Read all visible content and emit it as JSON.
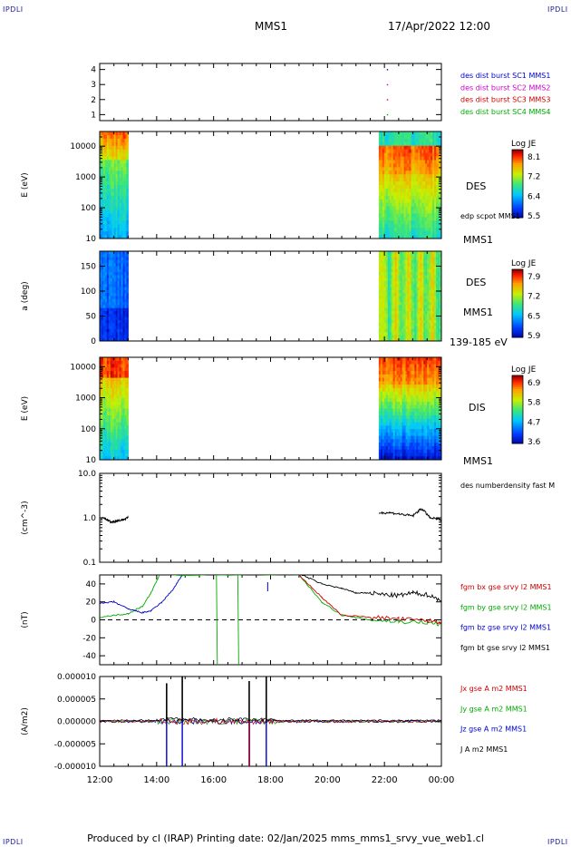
{
  "corner_labels": {
    "top_left": "IPDLI",
    "top_right": "IPDLI",
    "bottom_left": "IPDLI",
    "bottom_right": "IPDLI"
  },
  "header": {
    "mission": "MMS1",
    "datetime": "17/Apr/2022 12:00"
  },
  "footer": {
    "text": "Produced by cl (IRAP)   Printing date: 02/Jan/2025   mms_mms1_srvy_vue_web1.cl"
  },
  "time_axis": {
    "ticks": [
      "12:00",
      "14:00",
      "16:00",
      "18:00",
      "20:00",
      "22:00",
      "00:00"
    ]
  },
  "chart_data": [
    {
      "type": "scatter",
      "id": "burst",
      "yticks": [
        "1",
        "2",
        "3",
        "4"
      ],
      "ylim": [
        0.6,
        4.4
      ],
      "legend": [
        {
          "label": "des dist burst SC1 MMS1",
          "color": "#0000cc"
        },
        {
          "label": "des dist burst SC2 MMS2",
          "color": "#cc00cc"
        },
        {
          "label": "des dist burst SC3 MMS3",
          "color": "#cc0000"
        },
        {
          "label": "des dist burst SC4 MMS4",
          "color": "#00aa00"
        }
      ],
      "points": [
        {
          "t": 22.1,
          "y": 1.0,
          "color": "#00aa00"
        },
        {
          "t": 22.1,
          "y": 2.0,
          "color": "#cc0000"
        },
        {
          "t": 22.1,
          "y": 3.0,
          "color": "#cc00cc"
        },
        {
          "t": 22.1,
          "y": 4.0,
          "color": "#0000cc"
        }
      ]
    },
    {
      "type": "heatmap",
      "id": "des-energy",
      "ylabel": "E (eV)",
      "yscale": "log",
      "yticks": [
        "10",
        "100",
        "1000",
        "10000"
      ],
      "right_labels": [
        "DES",
        "edp scpot MMS1",
        "MMS1"
      ],
      "colorbar": {
        "title": "Log JE",
        "ticks": [
          "8.1",
          "7.2",
          "6.4",
          "5.5"
        ]
      },
      "segments": [
        {
          "t_start": 12.0,
          "t_end": 13.0
        },
        {
          "t_start": 21.8,
          "t_end": 24.0
        }
      ]
    },
    {
      "type": "heatmap",
      "id": "des-pitch",
      "ylabel": "a (deg)",
      "yticks": [
        "0",
        "50",
        "100",
        "150"
      ],
      "ylim": [
        0,
        180
      ],
      "right_labels": [
        "DES",
        "MMS1",
        "139-185 eV"
      ],
      "colorbar": {
        "title": "Log JE",
        "ticks": [
          "7.9",
          "7.2",
          "6.5",
          "5.9"
        ]
      },
      "segments": [
        {
          "t_start": 12.0,
          "t_end": 13.0
        },
        {
          "t_start": 21.8,
          "t_end": 24.0
        }
      ]
    },
    {
      "type": "heatmap",
      "id": "dis-energy",
      "ylabel": "E (eV)",
      "yscale": "log",
      "yticks": [
        "10",
        "100",
        "1000",
        "10000"
      ],
      "right_labels": [
        "DIS",
        "MMS1"
      ],
      "colorbar": {
        "title": "Log JE",
        "ticks": [
          "6.9",
          "5.8",
          "4.7",
          "3.6"
        ]
      },
      "segments": [
        {
          "t_start": 12.0,
          "t_end": 13.0
        },
        {
          "t_start": 21.8,
          "t_end": 24.0
        }
      ]
    },
    {
      "type": "line",
      "id": "density",
      "ylabel": "(cm^-3)",
      "yscale": "log",
      "yticks": [
        "0.1",
        "1.0",
        "10.0"
      ],
      "ylim": [
        0.1,
        10.0
      ],
      "legend": [
        {
          "label": "des numberdensity fast M",
          "color": "#000000"
        }
      ],
      "series": [
        {
          "name": "des numberdensity fast M",
          "color": "#000000",
          "t": [
            12.0,
            12.2,
            12.4,
            12.6,
            12.8,
            13.0,
            21.8,
            22.2,
            22.6,
            23.0,
            23.3,
            23.6,
            24.0
          ],
          "values": [
            1.0,
            0.95,
            0.8,
            0.85,
            0.9,
            1.0,
            1.3,
            1.3,
            1.2,
            1.1,
            1.6,
            1.0,
            0.9
          ]
        }
      ]
    },
    {
      "type": "line",
      "id": "fgm",
      "ylabel": "(nT)",
      "yticks": [
        "-40",
        "-20",
        "0",
        "20",
        "40"
      ],
      "ylim": [
        -50,
        50
      ],
      "legend": [
        {
          "label": "fgm bx gse srvy l2 MMS1",
          "color": "#cc0000"
        },
        {
          "label": "fgm by gse srvy l2 MMS1",
          "color": "#00aa00"
        },
        {
          "label": "fgm bz gse srvy l2 MMS1",
          "color": "#0000cc"
        },
        {
          "label": "fgm bt gse srvy l2 MMS1",
          "color": "#000000"
        }
      ],
      "series": [
        {
          "name": "fgm by gse srvy l2 MMS1",
          "color": "#00aa00",
          "t": [
            12.0,
            12.5,
            13.0,
            13.5,
            13.8,
            14.1,
            19.0,
            19.8,
            20.5,
            21.5,
            22.5,
            23.5,
            24.0
          ],
          "values": [
            3,
            5,
            7,
            15,
            30,
            50,
            50,
            20,
            5,
            0,
            -2,
            -3,
            -5
          ]
        },
        {
          "name": "fgm bx gse srvy l2 MMS1",
          "color": "#cc0000",
          "t": [
            19.0,
            19.8,
            20.5,
            21.5,
            22.5,
            23.5,
            24.0
          ],
          "values": [
            50,
            25,
            5,
            3,
            1,
            -1,
            -2
          ]
        },
        {
          "name": "fgm bz gse srvy l2 MMS1",
          "color": "#0000cc",
          "t": [
            12.0,
            12.5,
            13.0,
            13.5,
            13.8,
            14.2,
            14.6,
            14.9
          ],
          "values": [
            18,
            20,
            12,
            8,
            10,
            20,
            35,
            50
          ]
        },
        {
          "name": "fgm bt gse srvy l2 MMS1",
          "color": "#000000",
          "t": [
            19.1,
            19.8,
            20.5,
            21.0,
            21.5,
            22.0,
            22.5,
            23.0,
            23.5,
            24.0
          ],
          "values": [
            50,
            40,
            35,
            30,
            30,
            28,
            27,
            30,
            28,
            22
          ]
        }
      ]
    },
    {
      "type": "line",
      "id": "current",
      "ylabel": "(A/m2)",
      "yticks": [
        "-0.000010",
        "-0.000005",
        "0.000000",
        "0.000005",
        "0.000010"
      ],
      "ylim": [
        -1e-05,
        1e-05
      ],
      "legend": [
        {
          "label": "Jx gse A m2 MMS1",
          "color": "#cc0000"
        },
        {
          "label": "Jy gse A m2 MMS1",
          "color": "#00aa00"
        },
        {
          "label": "Jz gse A m2 MMS1",
          "color": "#0000cc"
        },
        {
          "label": "J A m2 MMS1",
          "color": "#000000"
        }
      ],
      "spikes": [
        {
          "t": 14.35,
          "values": [
            8.5e-06,
            -1e-05
          ]
        },
        {
          "t": 14.9,
          "values": [
            1e-05,
            -1e-05
          ]
        },
        {
          "t": 17.25,
          "values": [
            9e-06,
            -1e-05
          ]
        },
        {
          "t": 17.85,
          "values": [
            1e-05,
            -1e-05
          ]
        }
      ]
    }
  ]
}
